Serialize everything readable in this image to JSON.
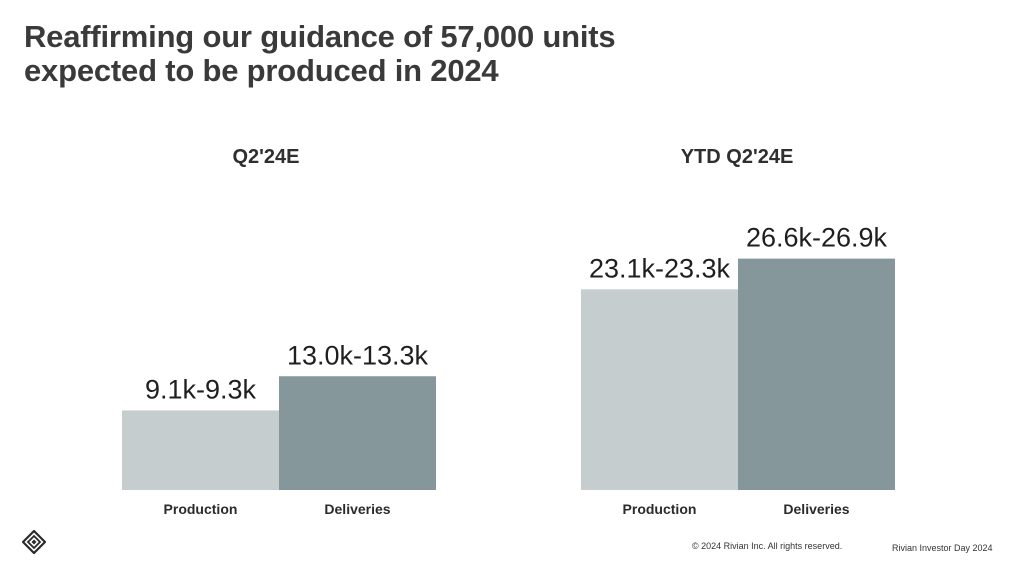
{
  "slide": {
    "title_line1": "Reaffirming our guidance of 57,000 units",
    "title_line2": "expected to be produced in 2024",
    "footer": {
      "copyright": "© 2024 Rivian Inc. All rights reserved.",
      "event": "Rivian Investor Day 2024"
    },
    "logo_icon": "rivian-compass-icon"
  },
  "colors": {
    "production": "#c6cdce",
    "deliveries": "#86979b",
    "text": "#2b2b2b"
  },
  "chart_data": [
    {
      "type": "bar",
      "title": "Q2'24E",
      "categories": [
        "Production",
        "Deliveries"
      ],
      "values": [
        9.2,
        13.15
      ],
      "data_labels": [
        "9.1k-9.3k",
        "13.0k-13.3k"
      ],
      "unit": "thousand units",
      "ylim": [
        0,
        30
      ],
      "grid": false,
      "legend": "none"
    },
    {
      "type": "bar",
      "title": "YTD Q2'24E",
      "categories": [
        "Production",
        "Deliveries"
      ],
      "values": [
        23.2,
        26.75
      ],
      "data_labels": [
        "23.1k-23.3k",
        "26.6k-26.9k"
      ],
      "unit": "thousand units",
      "ylim": [
        0,
        30
      ],
      "grid": false,
      "legend": "none"
    }
  ]
}
